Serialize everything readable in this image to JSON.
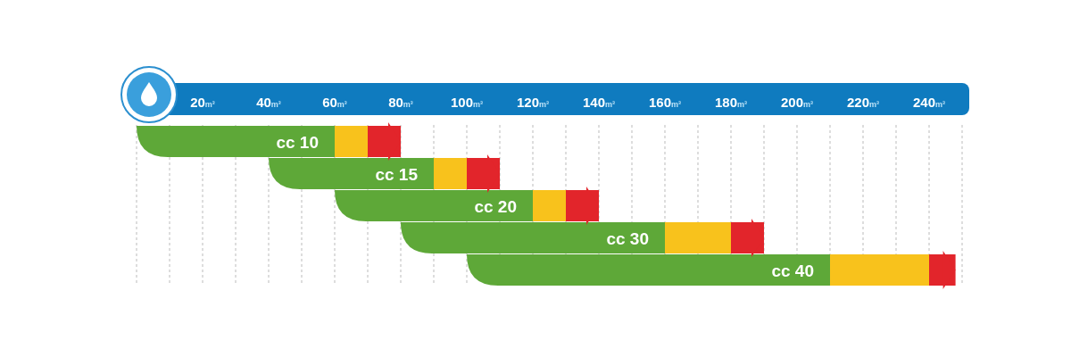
{
  "chart_data": {
    "type": "bar",
    "orientation": "horizontal",
    "categories": [
      "cc 10",
      "cc 15",
      "cc 20",
      "cc 30",
      "cc 40"
    ],
    "series": [
      {
        "color": "#5ea838",
        "base": [
          0,
          40,
          60,
          80,
          100
        ],
        "values": [
          60,
          50,
          60,
          80,
          110
        ]
      },
      {
        "color": "#f8c21c",
        "base": [
          60,
          90,
          120,
          160,
          210
        ],
        "values": [
          10,
          10,
          10,
          20,
          30
        ]
      },
      {
        "color": "#e2252b",
        "base": [
          70,
          100,
          130,
          180,
          240
        ],
        "values": [
          10,
          10,
          10,
          10,
          8
        ]
      }
    ],
    "xlim": [
      0,
      250
    ],
    "xticks": [
      {
        "value": 10,
        "label": null
      },
      {
        "value": 20,
        "label": "20m³"
      },
      {
        "value": 30,
        "label": null
      },
      {
        "value": 40,
        "label": "40m³"
      },
      {
        "value": 50,
        "label": null
      },
      {
        "value": 60,
        "label": "60m³"
      },
      {
        "value": 70,
        "label": null
      },
      {
        "value": 80,
        "label": "80m³"
      },
      {
        "value": 90,
        "label": null
      },
      {
        "value": 100,
        "label": "100m³"
      },
      {
        "value": 110,
        "label": null
      },
      {
        "value": 120,
        "label": "120m³"
      },
      {
        "value": 130,
        "label": null
      },
      {
        "value": 140,
        "label": "140m³"
      },
      {
        "value": 150,
        "label": null
      },
      {
        "value": 160,
        "label": "160m³"
      },
      {
        "value": 170,
        "label": null
      },
      {
        "value": 180,
        "label": "180m³"
      },
      {
        "value": 190,
        "label": null
      },
      {
        "value": 200,
        "label": "200m³"
      },
      {
        "value": 210,
        "label": null
      },
      {
        "value": 220,
        "label": "220m³"
      },
      {
        "value": 230,
        "label": null
      },
      {
        "value": 240,
        "label": "240m³"
      }
    ],
    "grid": "x"
  }
}
